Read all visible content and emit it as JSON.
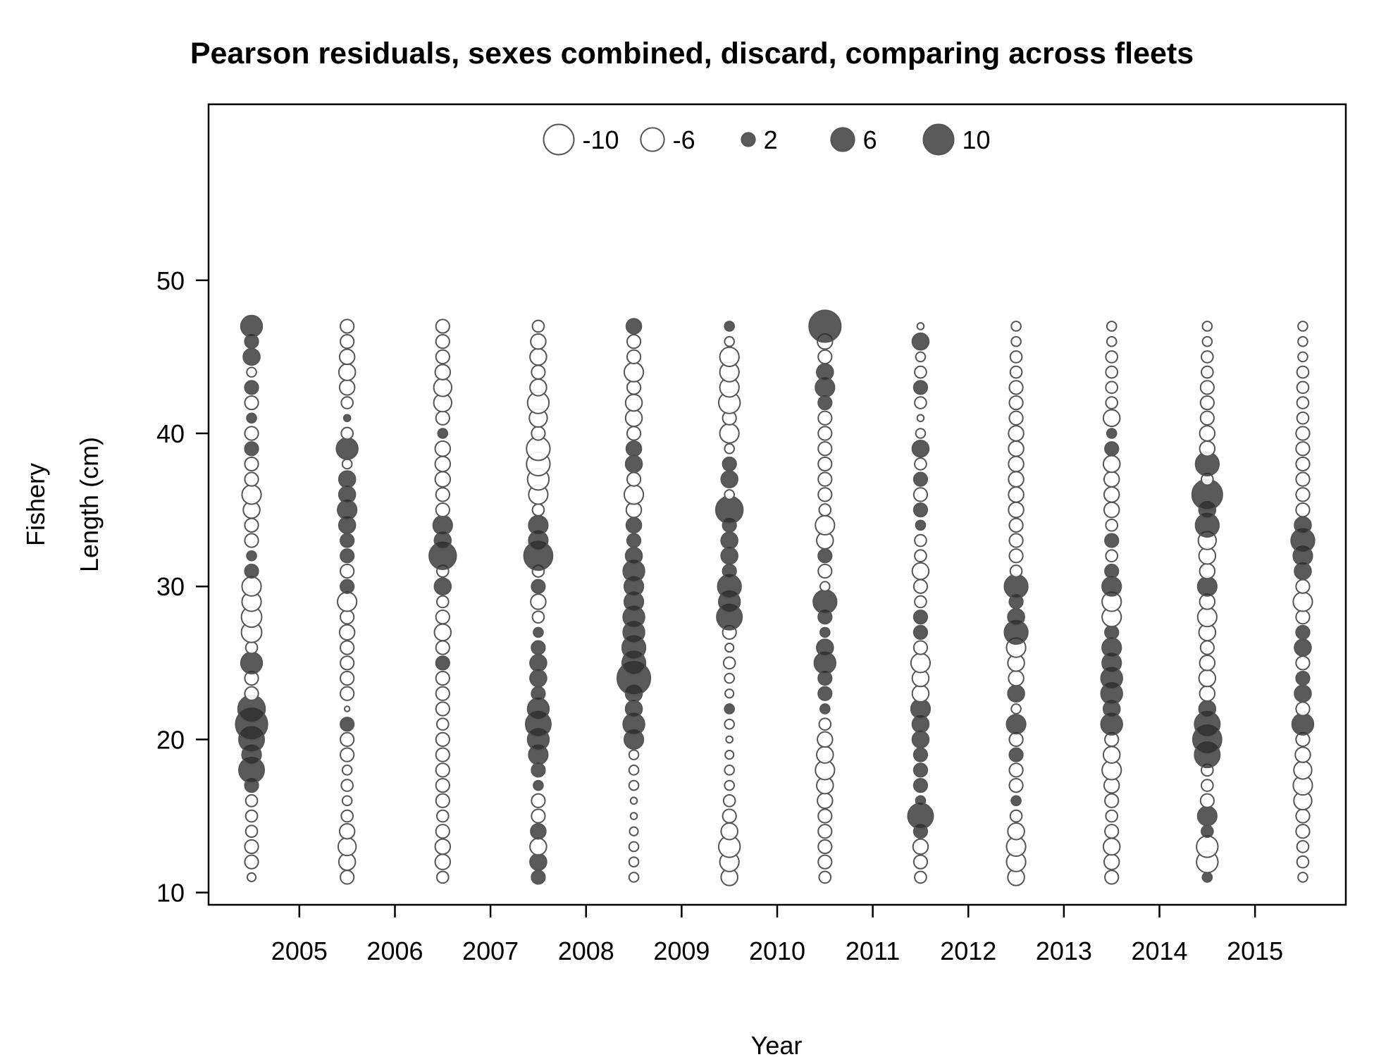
{
  "chart_data": {
    "type": "scatter",
    "subtype": "bubble",
    "title": "Pearson residuals, sexes combined, discard, comparing across fleets",
    "xlabel": "Year",
    "ylabel_line1": "Fishery",
    "ylabel_line2": "Length (cm)",
    "xlim": [
      2004.05,
      2015.95
    ],
    "ylim": [
      9.2,
      61.5
    ],
    "x_ticks": [
      2005,
      2006,
      2007,
      2008,
      2009,
      2010,
      2011,
      2012,
      2013,
      2014,
      2015
    ],
    "y_ticks": [
      10,
      20,
      30,
      40,
      50
    ],
    "colors": {
      "positive": "#2b2b2b",
      "negative": "#ffffff",
      "stroke": "#555555"
    },
    "legend": {
      "placement": "top-center",
      "entries": [
        {
          "label": "-10",
          "value": -10
        },
        {
          "label": "-6",
          "value": -6
        },
        {
          "label": "2",
          "value": 2
        },
        {
          "label": "6",
          "value": 6
        },
        {
          "label": "10",
          "value": 10
        }
      ]
    },
    "series": [
      {
        "x": 2004.5,
        "lengths": [
          11,
          12,
          13,
          14,
          15,
          16,
          17,
          18,
          19,
          20,
          21,
          22,
          23,
          24,
          25,
          26,
          27,
          28,
          29,
          30,
          31,
          32,
          33,
          34,
          35,
          36,
          37,
          38,
          39,
          40,
          41,
          42,
          43,
          44,
          45,
          46,
          47
        ],
        "residuals": [
          -0.8,
          -2,
          -2,
          -1.5,
          -1.5,
          -1.5,
          2,
          7,
          4,
          7,
          11,
          8,
          -2,
          -2,
          5,
          -1.5,
          -4.5,
          -4.5,
          -4,
          -4,
          2,
          1,
          -2,
          -2,
          -3,
          -4,
          -2,
          -2,
          2,
          -2,
          1,
          -2,
          2,
          -1,
          3,
          2,
          5
        ]
      },
      {
        "x": 2005.5,
        "lengths": [
          11,
          12,
          13,
          14,
          15,
          16,
          17,
          18,
          19,
          20,
          21,
          22,
          23,
          24,
          25,
          26,
          27,
          28,
          29,
          30,
          31,
          32,
          33,
          34,
          35,
          36,
          37,
          38,
          39,
          40,
          41,
          42,
          43,
          44,
          45,
          46,
          47
        ],
        "residuals": [
          -2,
          -3,
          -3.5,
          -2.5,
          -1.5,
          -1,
          -1.5,
          -1,
          -2,
          -2,
          2,
          -0.3,
          -2,
          -2,
          -2,
          -2,
          -2.5,
          -2,
          -4,
          2,
          -2,
          2,
          2,
          3,
          4,
          3,
          3,
          -1,
          5,
          -1.5,
          0.5,
          -1.5,
          -2.5,
          -3,
          -2.5,
          -2,
          -2
        ]
      },
      {
        "x": 2006.5,
        "lengths": [
          11,
          12,
          13,
          14,
          15,
          16,
          17,
          18,
          19,
          20,
          21,
          22,
          23,
          24,
          25,
          26,
          27,
          28,
          29,
          30,
          31,
          32,
          33,
          34,
          35,
          36,
          37,
          38,
          39,
          40,
          41,
          42,
          43,
          44,
          45,
          46,
          47
        ],
        "residuals": [
          -1.5,
          -2.5,
          -2.5,
          -2,
          -1.5,
          -2,
          -2,
          -2,
          -2,
          -2,
          -1.5,
          -2,
          -2,
          -2,
          2,
          -2,
          -3,
          -2,
          -1.5,
          3,
          -1.5,
          8,
          3,
          4,
          -2,
          -2,
          -2.5,
          -2.5,
          -2.5,
          1,
          -2,
          -3.5,
          -3.5,
          -2.5,
          -2,
          -2,
          -2
        ]
      },
      {
        "x": 2007.5,
        "lengths": [
          11,
          12,
          13,
          14,
          15,
          16,
          17,
          18,
          19,
          20,
          21,
          22,
          23,
          24,
          25,
          26,
          27,
          28,
          29,
          30,
          31,
          32,
          33,
          34,
          35,
          36,
          37,
          38,
          39,
          40,
          41,
          42,
          43,
          44,
          45,
          46,
          47
        ],
        "residuals": [
          2,
          3,
          -3,
          2.5,
          -2,
          -2,
          1,
          2,
          4,
          5,
          7,
          5,
          2,
          3,
          3,
          2,
          1,
          -1.5,
          -2.5,
          2,
          -1.5,
          9,
          4,
          4,
          -1.5,
          -4,
          -5,
          -6,
          -6,
          -2,
          -3.5,
          -5,
          -3,
          -2,
          -3,
          -2.5,
          -1.5
        ]
      },
      {
        "x": 2008.5,
        "lengths": [
          11,
          12,
          13,
          14,
          15,
          16,
          17,
          18,
          19,
          20,
          21,
          22,
          23,
          24,
          25,
          26,
          27,
          28,
          29,
          30,
          31,
          32,
          33,
          34,
          35,
          36,
          37,
          38,
          39,
          40,
          41,
          42,
          43,
          44,
          45,
          46,
          47
        ],
        "residuals": [
          -1,
          -1,
          -1,
          -0.8,
          -0.5,
          -0.5,
          -1,
          -1,
          -1,
          4,
          5,
          3,
          3,
          12,
          6,
          6,
          5,
          5,
          4,
          4,
          5,
          3,
          2,
          2.5,
          -2.5,
          -4,
          -2,
          3,
          2.5,
          -2,
          -3,
          -3,
          -2,
          -4,
          -2,
          -2,
          2.5
        ]
      },
      {
        "x": 2009.5,
        "lengths": [
          11,
          12,
          13,
          14,
          15,
          16,
          17,
          18,
          19,
          20,
          21,
          22,
          23,
          24,
          25,
          26,
          27,
          28,
          29,
          30,
          31,
          32,
          33,
          34,
          35,
          36,
          37,
          38,
          39,
          40,
          41,
          42,
          43,
          44,
          45,
          46,
          47
        ],
        "residuals": [
          -3,
          -4,
          -5,
          -3,
          -2,
          -1.5,
          -1,
          -1,
          -0.8,
          -0.5,
          -1,
          1,
          -0.8,
          -1,
          -1.5,
          -0.8,
          -2,
          7,
          5,
          6,
          2,
          3,
          3,
          2,
          8,
          -1,
          3,
          2,
          -1,
          -4,
          -2,
          -5,
          -4,
          -4,
          -4,
          -1,
          1
        ]
      },
      {
        "x": 2010.5,
        "lengths": [
          11,
          12,
          13,
          14,
          15,
          16,
          17,
          18,
          19,
          20,
          21,
          22,
          23,
          24,
          25,
          26,
          27,
          28,
          29,
          30,
          31,
          32,
          33,
          34,
          35,
          36,
          37,
          38,
          39,
          40,
          41,
          42,
          43,
          44,
          45,
          46,
          47
        ],
        "residuals": [
          -1.5,
          -2,
          -2,
          -2,
          -2,
          -2.5,
          -3,
          -4,
          -3,
          -2.5,
          -1.5,
          1,
          2,
          2,
          5,
          3,
          1,
          2,
          6,
          -1,
          -2,
          2,
          -3,
          -4,
          -1.5,
          -2,
          -2,
          -2,
          -2,
          -2,
          -2,
          2,
          4,
          3,
          -2,
          -2.5,
          11
        ]
      },
      {
        "x": 2011.5,
        "lengths": [
          11,
          12,
          13,
          14,
          15,
          16,
          17,
          18,
          19,
          20,
          21,
          22,
          23,
          24,
          25,
          26,
          27,
          28,
          29,
          30,
          31,
          32,
          33,
          34,
          35,
          36,
          37,
          38,
          39,
          40,
          41,
          42,
          43,
          44,
          45,
          46,
          47
        ],
        "residuals": [
          -1.5,
          -2,
          -2.5,
          2,
          7,
          1,
          2,
          2,
          2,
          3,
          3,
          4,
          -3,
          -3,
          -4,
          -2,
          2,
          2,
          -1.5,
          -2,
          -3,
          -1.5,
          -1.5,
          1,
          2,
          -2,
          2,
          -1.5,
          3,
          -1,
          -0.5,
          -1.5,
          2,
          -1.5,
          -1,
          3,
          -0.5
        ]
      },
      {
        "x": 2012.5,
        "lengths": [
          11,
          12,
          13,
          14,
          15,
          16,
          17,
          18,
          19,
          20,
          21,
          22,
          23,
          24,
          25,
          26,
          27,
          28,
          29,
          30,
          31,
          32,
          33,
          34,
          35,
          36,
          37,
          38,
          39,
          40,
          41,
          42,
          43,
          44,
          45,
          46,
          47
        ],
        "residuals": [
          -3,
          -4,
          -4,
          -3,
          -1.5,
          1,
          -2,
          -2,
          2,
          -2,
          4,
          -1,
          3,
          -2.5,
          -3,
          -4,
          6,
          3,
          2,
          6,
          -1.5,
          -2,
          -2,
          -2,
          -2.5,
          -2.5,
          -2.5,
          -2.5,
          -2.5,
          -2.5,
          -2,
          -2,
          -2,
          -1.5,
          -1.5,
          -1,
          -1
        ]
      },
      {
        "x": 2013.5,
        "lengths": [
          11,
          12,
          13,
          14,
          15,
          16,
          17,
          18,
          19,
          20,
          21,
          22,
          23,
          24,
          25,
          26,
          27,
          28,
          29,
          30,
          31,
          32,
          33,
          34,
          35,
          36,
          37,
          38,
          39,
          40,
          41,
          42,
          43,
          44,
          45,
          46,
          47
        ],
        "residuals": [
          -2,
          -2.5,
          -3,
          -2,
          -1.5,
          -2,
          -2.5,
          -4,
          -3,
          -2,
          5,
          3,
          5,
          5,
          4,
          4,
          2,
          -4,
          -4,
          4,
          2,
          -1.5,
          2,
          -1.5,
          -2.5,
          -2.5,
          -2.5,
          -3,
          2,
          1,
          -3,
          -1.5,
          -1.5,
          -1.5,
          -1.5,
          -1,
          -1
        ]
      },
      {
        "x": 2014.5,
        "lengths": [
          11,
          12,
          13,
          14,
          15,
          16,
          17,
          18,
          19,
          20,
          21,
          22,
          23,
          24,
          25,
          26,
          27,
          28,
          29,
          30,
          31,
          32,
          33,
          34,
          35,
          36,
          37,
          38,
          39,
          40,
          41,
          42,
          43,
          44,
          45,
          46,
          47
        ],
        "residuals": [
          1,
          -5,
          -5,
          1.5,
          4,
          -2,
          -1.5,
          -1.5,
          7,
          9,
          7,
          3,
          -2.5,
          -3,
          -2.5,
          -2,
          -3,
          -4,
          -2.5,
          4,
          -2.5,
          -3,
          -3.5,
          6,
          3,
          10,
          -1.5,
          6,
          -2.5,
          -2.5,
          -2,
          -2,
          -2,
          -1.5,
          -1.5,
          -1,
          -1
        ]
      },
      {
        "x": 2015.5,
        "lengths": [
          11,
          12,
          13,
          14,
          15,
          16,
          17,
          18,
          19,
          20,
          21,
          22,
          23,
          24,
          25,
          26,
          27,
          28,
          29,
          30,
          31,
          32,
          33,
          34,
          35,
          36,
          37,
          38,
          39,
          40,
          41,
          42,
          43,
          44,
          45,
          46,
          47
        ],
        "residuals": [
          -1,
          -1.5,
          -1.5,
          -2,
          -2,
          -3.5,
          -4,
          -3.5,
          -2.5,
          -2,
          5,
          -2,
          3,
          2,
          -2,
          3,
          2,
          -2,
          -4,
          -2,
          3,
          4,
          6,
          3,
          -2,
          -2,
          -2,
          -2,
          -2,
          -2,
          -1.5,
          -1.5,
          -1.5,
          -1.5,
          -1,
          -1,
          -1
        ]
      }
    ]
  }
}
